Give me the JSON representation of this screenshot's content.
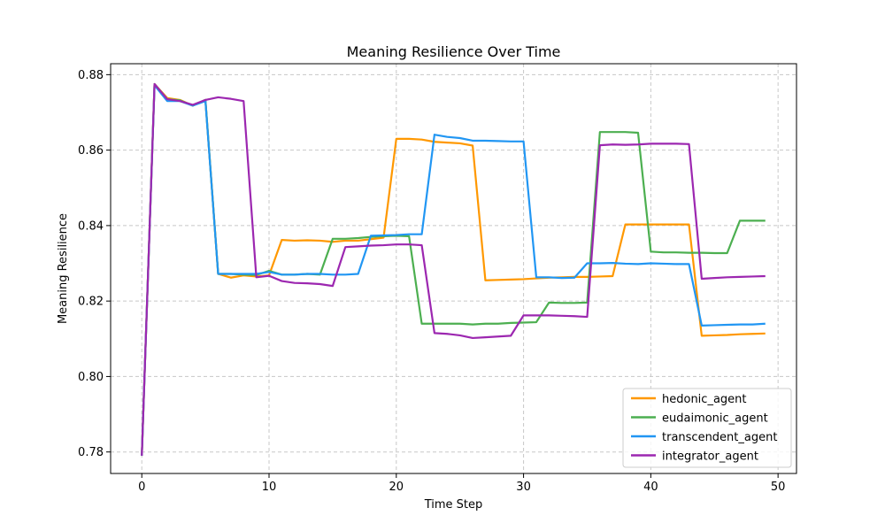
{
  "chart_data": {
    "type": "line",
    "title": "Meaning Resilience Over Time",
    "xlabel": "Time Step",
    "ylabel": "Meaning Resilience",
    "xlim": [
      -2.45,
      51.45
    ],
    "ylim": [
      0.7743,
      0.8829
    ],
    "xticks": [
      0,
      10,
      20,
      30,
      40,
      50
    ],
    "yticks": [
      0.78,
      0.8,
      0.82,
      0.84,
      0.86,
      0.88
    ],
    "ytick_labels": [
      "0.78",
      "0.80",
      "0.82",
      "0.84",
      "0.86",
      "0.88"
    ],
    "grid": true,
    "legend_position": "lower-right",
    "x": [
      0,
      1,
      2,
      3,
      4,
      5,
      6,
      7,
      8,
      9,
      10,
      11,
      12,
      13,
      14,
      15,
      16,
      17,
      18,
      19,
      20,
      21,
      22,
      23,
      24,
      25,
      26,
      27,
      28,
      29,
      30,
      31,
      32,
      33,
      34,
      35,
      36,
      37,
      38,
      39,
      40,
      41,
      42,
      43,
      44,
      45,
      46,
      47,
      48,
      49
    ],
    "series": [
      {
        "name": "hedonic_agent",
        "color": "#ff9800",
        "values": [
          0.779,
          0.8775,
          0.8738,
          0.8733,
          0.8718,
          0.8733,
          0.8272,
          0.8262,
          0.8268,
          0.8265,
          0.8268,
          0.8362,
          0.836,
          0.8361,
          0.836,
          0.8357,
          0.836,
          0.836,
          0.8364,
          0.8368,
          0.863,
          0.863,
          0.8628,
          0.8622,
          0.862,
          0.8618,
          0.8612,
          0.8255,
          0.8256,
          0.8257,
          0.8258,
          0.826,
          0.8262,
          0.8263,
          0.8264,
          0.8264,
          0.8265,
          0.8266,
          0.8403,
          0.8403,
          0.8403,
          0.8403,
          0.8403,
          0.8403,
          0.8108,
          0.8109,
          0.811,
          0.8112,
          0.8113,
          0.8114
        ]
      },
      {
        "name": "eudaimonic_agent",
        "color": "#4caf50",
        "values": [
          0.779,
          0.8775,
          0.8735,
          0.8732,
          0.8718,
          0.8733,
          0.8272,
          0.8272,
          0.827,
          0.8269,
          0.828,
          0.827,
          0.827,
          0.8272,
          0.827,
          0.8365,
          0.8365,
          0.8367,
          0.837,
          0.8372,
          0.8373,
          0.8372,
          0.814,
          0.814,
          0.814,
          0.814,
          0.8138,
          0.814,
          0.814,
          0.8142,
          0.8143,
          0.8144,
          0.8196,
          0.8195,
          0.8195,
          0.8196,
          0.8648,
          0.8648,
          0.8648,
          0.8646,
          0.8331,
          0.8329,
          0.8329,
          0.8328,
          0.8328,
          0.8327,
          0.8327,
          0.8413,
          0.8413,
          0.8413
        ]
      },
      {
        "name": "transcendent_agent",
        "color": "#2196f3",
        "values": [
          0.779,
          0.8772,
          0.873,
          0.873,
          0.8718,
          0.873,
          0.8272,
          0.8272,
          0.8272,
          0.8272,
          0.8277,
          0.827,
          0.827,
          0.8272,
          0.8272,
          0.827,
          0.827,
          0.8272,
          0.8373,
          0.8374,
          0.8375,
          0.8377,
          0.8377,
          0.8641,
          0.8635,
          0.8632,
          0.8625,
          0.8625,
          0.8624,
          0.8623,
          0.8623,
          0.8263,
          0.8263,
          0.8261,
          0.8262,
          0.83,
          0.83,
          0.8301,
          0.8299,
          0.8298,
          0.83,
          0.8299,
          0.8298,
          0.8298,
          0.8135,
          0.8136,
          0.8137,
          0.8138,
          0.8138,
          0.814
        ]
      },
      {
        "name": "integrator_agent",
        "color": "#9c27b0",
        "values": [
          0.779,
          0.8775,
          0.8735,
          0.873,
          0.872,
          0.8733,
          0.874,
          0.8736,
          0.873,
          0.8263,
          0.8267,
          0.8253,
          0.8248,
          0.8247,
          0.8245,
          0.824,
          0.8343,
          0.8345,
          0.8347,
          0.8348,
          0.835,
          0.835,
          0.8348,
          0.8115,
          0.8113,
          0.8109,
          0.8102,
          0.8104,
          0.8106,
          0.8108,
          0.8162,
          0.8162,
          0.8162,
          0.8161,
          0.816,
          0.8158,
          0.8613,
          0.8615,
          0.8614,
          0.8615,
          0.8617,
          0.8617,
          0.8617,
          0.8616,
          0.8259,
          0.8261,
          0.8263,
          0.8264,
          0.8265,
          0.8266
        ]
      }
    ]
  }
}
